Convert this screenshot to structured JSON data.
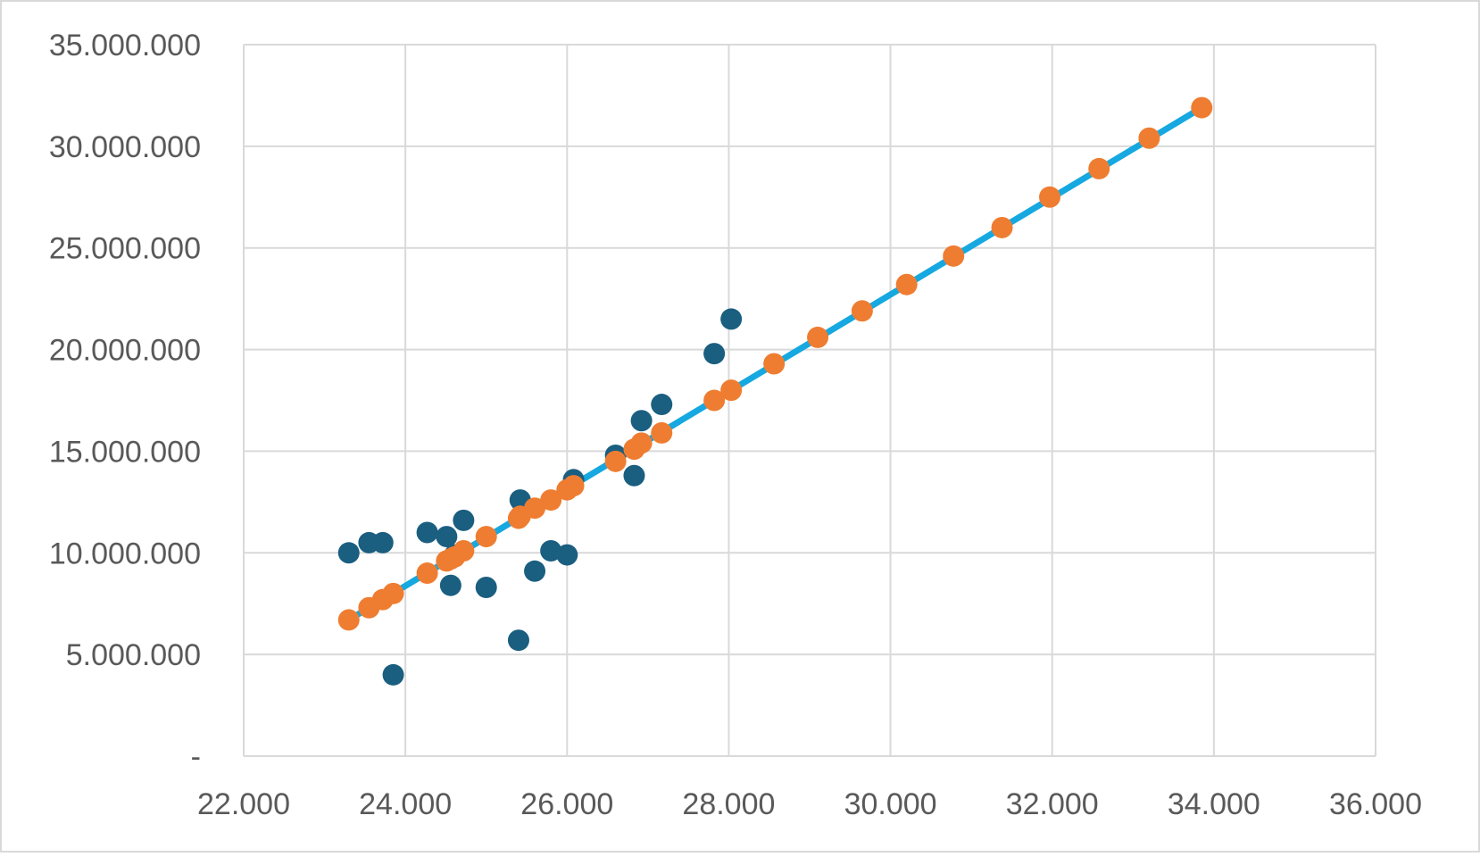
{
  "chart_data": {
    "type": "scatter",
    "title": "",
    "xlabel": "",
    "ylabel": "",
    "xlim": [
      22000,
      36000
    ],
    "ylim": [
      0,
      35000000
    ],
    "x_ticks": [
      22000,
      24000,
      26000,
      28000,
      30000,
      32000,
      34000,
      36000
    ],
    "x_tick_labels": [
      "22.000",
      "24.000",
      "26.000",
      "28.000",
      "30.000",
      "32.000",
      "34.000",
      "36.000"
    ],
    "y_ticks": [
      0,
      5000000,
      10000000,
      15000000,
      20000000,
      25000000,
      30000000,
      35000000
    ],
    "y_tick_labels": [
      "-",
      "5.000.000",
      "10.000.000",
      "15.000.000",
      "20.000.000",
      "25.000.000",
      "30.000.000",
      "35.000.000"
    ],
    "grid": true,
    "legend": "none",
    "colors": {
      "observed": "#1a5e80",
      "predicted": "#ee7d31",
      "fit_line": "#16a8e0",
      "grid": "#d9d9d9",
      "tick_text": "#595959",
      "border": "#d9d9d9"
    },
    "series": [
      {
        "style": "markers",
        "color": "#1a5e80",
        "points": [
          [
            23300,
            10000000
          ],
          [
            23550,
            10500000
          ],
          [
            23720,
            10500000
          ],
          [
            23850,
            4000000
          ],
          [
            24270,
            11000000
          ],
          [
            24510,
            10800000
          ],
          [
            24560,
            8400000
          ],
          [
            24610,
            9900000
          ],
          [
            24720,
            11600000
          ],
          [
            25000,
            8300000
          ],
          [
            25400,
            5700000
          ],
          [
            25420,
            12600000
          ],
          [
            25600,
            9100000
          ],
          [
            25800,
            10100000
          ],
          [
            26000,
            9900000
          ],
          [
            26080,
            13600000
          ],
          [
            26600,
            14800000
          ],
          [
            26830,
            13800000
          ],
          [
            26920,
            16500000
          ],
          [
            27170,
            17300000
          ],
          [
            27820,
            19800000
          ],
          [
            28030,
            21500000
          ]
        ]
      },
      {
        "style": "markers",
        "color": "#ee7d31",
        "points": [
          [
            23300,
            6700000
          ],
          [
            23550,
            7300000
          ],
          [
            23720,
            7700000
          ],
          [
            23850,
            8000000
          ],
          [
            24270,
            9000000
          ],
          [
            24510,
            9600000
          ],
          [
            24560,
            9700000
          ],
          [
            24610,
            9800000
          ],
          [
            24720,
            10100000
          ],
          [
            25000,
            10800000
          ],
          [
            25400,
            11700000
          ],
          [
            25420,
            11800000
          ],
          [
            25600,
            12200000
          ],
          [
            25800,
            12600000
          ],
          [
            26000,
            13100000
          ],
          [
            26080,
            13300000
          ],
          [
            26600,
            14500000
          ],
          [
            26830,
            15100000
          ],
          [
            26920,
            15400000
          ],
          [
            27170,
            15900000
          ],
          [
            27820,
            17500000
          ],
          [
            28030,
            18000000
          ],
          [
            28560,
            19300000
          ],
          [
            29100,
            20600000
          ],
          [
            29650,
            21900000
          ],
          [
            30200,
            23200000
          ],
          [
            30780,
            24600000
          ],
          [
            31380,
            26000000
          ],
          [
            31970,
            27500000
          ],
          [
            32580,
            28900000
          ],
          [
            33200,
            30400000
          ],
          [
            33850,
            31900000
          ]
        ]
      },
      {
        "style": "line",
        "color": "#16a8e0",
        "points": [
          [
            23300,
            6700000
          ],
          [
            33850,
            31900000
          ]
        ]
      }
    ]
  }
}
